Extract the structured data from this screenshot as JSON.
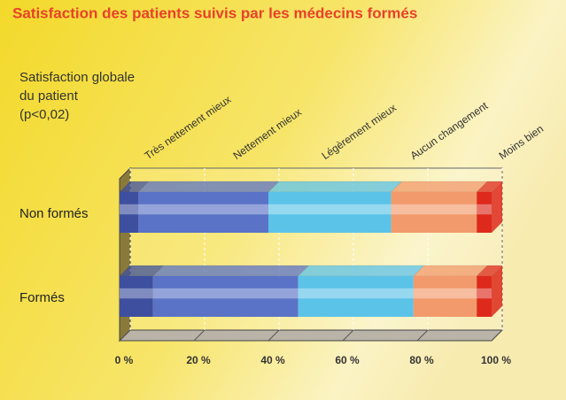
{
  "chart_data": {
    "type": "bar3d_stacked_horizontal",
    "title": "Satisfaction des patients suivis par les médecins formés",
    "y_label_lines": [
      "Satisfaction globale",
      "du patient",
      "(p<0,02)"
    ],
    "categories": [
      "Non formés",
      "Formés"
    ],
    "series": [
      {
        "name": "Très nettement mieux",
        "color": "#3d4f9e",
        "values": [
          5,
          9
        ]
      },
      {
        "name": "Nettement mieux",
        "color": "#5b73c6",
        "values": [
          35,
          39
        ]
      },
      {
        "name": "Légèrement mieux",
        "color": "#5cc3e8",
        "values": [
          33,
          31
        ]
      },
      {
        "name": "Aucun changement",
        "color": "#f29a6c",
        "values": [
          23,
          17
        ]
      },
      {
        "name": "Moins bien",
        "color": "#dd2a1c",
        "values": [
          4,
          4
        ]
      }
    ],
    "xlim": [
      0,
      100
    ],
    "xticks": [
      {
        "value": 0,
        "label": "0 %"
      },
      {
        "value": 20,
        "label": "20 %"
      },
      {
        "value": 40,
        "label": "40 %"
      },
      {
        "value": 60,
        "label": "60 %"
      },
      {
        "value": 80,
        "label": "80 %"
      },
      {
        "value": 100,
        "label": "100 %"
      }
    ],
    "grid": true
  }
}
